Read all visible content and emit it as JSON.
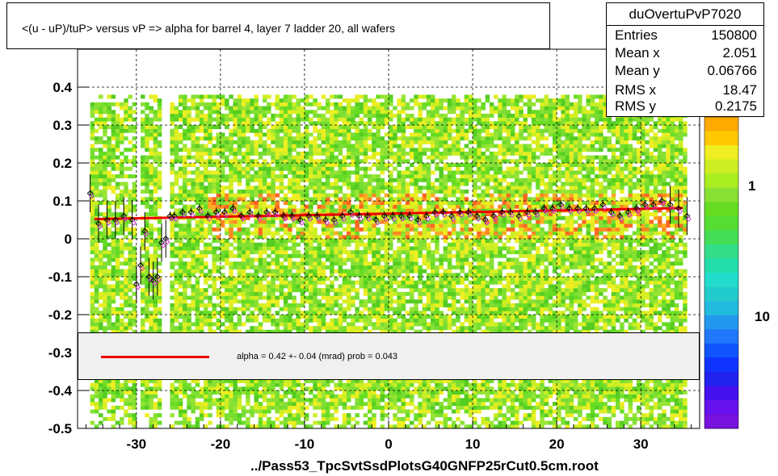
{
  "title": "<(u - uP)/tuP> versus   vP => alpha for barrel 4, layer 7 ladder 20, all wafers",
  "stats": {
    "name": "duOvertuPvP7020",
    "rows": [
      {
        "label": "Entries",
        "value": "150800"
      },
      {
        "label": "Mean x",
        "value": "2.051"
      },
      {
        "label": "Mean y",
        "value": "0.06766"
      },
      {
        "label": "RMS x",
        "value": "18.47"
      },
      {
        "label": "RMS y",
        "value": "0.2175"
      }
    ]
  },
  "fit_text": "alpha =    0.42 +-  0.04 (mrad) prob = 0.043",
  "file_label": "../Pass53_TpcSvtSsdPlotsG40GNFP25rCut0.5cm.root",
  "colors": {
    "fit_line": "#ee0000",
    "profile_black": "#000000",
    "profile_magenta": "#d040d0",
    "heat_green": "#66dd22",
    "heat_yellow": "#ddee22",
    "heat_orange": "#ff8822"
  },
  "chart_data": {
    "type": "heatmap",
    "xlim": [
      -37,
      37
    ],
    "ylim": [
      -0.5,
      0.5
    ],
    "x_ticks": [
      -30,
      -20,
      -10,
      0,
      10,
      20,
      30
    ],
    "y_ticks": [
      -0.5,
      -0.4,
      -0.3,
      -0.2,
      -0.1,
      0,
      0.1,
      0.2,
      0.3,
      0.4
    ],
    "x_tick_labels": [
      "-30",
      "-20",
      "-10",
      "0",
      "10",
      "20",
      "30"
    ],
    "y_tick_labels": [
      "-0.5",
      "-0.4",
      "-0.3",
      "-0.2",
      "-0.1",
      "0",
      "0.1",
      "0.2",
      "0.3",
      "0.4"
    ],
    "grid": true,
    "color_scale": {
      "type": "log",
      "labels": [
        "1",
        "10"
      ]
    },
    "fit_line": {
      "x": [
        -35,
        35
      ],
      "y": [
        0.052,
        0.081
      ]
    },
    "profile_series": {
      "name": "profile",
      "x": [
        -35.5,
        -34.5,
        -33.5,
        -32.5,
        -31.5,
        -30.5,
        -30,
        -29.5,
        -29,
        -28.5,
        -28,
        -27.5,
        -27,
        -26.5,
        -26,
        -25.5,
        -24.5,
        -23.5,
        -22.5,
        -21.5,
        -20.5,
        -19.5,
        -18.5,
        -17.5,
        -16.5,
        -15.5,
        -14.5,
        -13.5,
        -12.5,
        -11.5,
        -10.5,
        -9.5,
        -8.5,
        -7.5,
        -6.5,
        -5.5,
        -4.5,
        -3.5,
        -2.5,
        -1.5,
        -0.5,
        0.5,
        1.5,
        2.5,
        3.5,
        4.5,
        5.5,
        6.5,
        7.5,
        8.5,
        9.5,
        10.5,
        11.5,
        12.5,
        13.5,
        14.5,
        15.5,
        16.5,
        17.5,
        18.5,
        19.5,
        20.5,
        21.5,
        22.5,
        23.5,
        24.5,
        25.5,
        26.5,
        27.5,
        28.5,
        29.5,
        30.5,
        31.5,
        32.5,
        33.5,
        34.5,
        35.5
      ],
      "y": [
        0.12,
        0.04,
        0.05,
        0.05,
        0.06,
        0.05,
        -0.12,
        -0.07,
        0.02,
        -0.1,
        -0.11,
        -0.1,
        -0.01,
        0.0,
        0.06,
        0.06,
        0.07,
        0.07,
        0.08,
        0.06,
        0.07,
        0.07,
        0.08,
        0.06,
        0.07,
        0.06,
        0.07,
        0.07,
        0.06,
        0.06,
        0.05,
        0.06,
        0.06,
        0.05,
        0.05,
        0.06,
        0.07,
        0.06,
        0.06,
        0.05,
        0.06,
        0.06,
        0.06,
        0.06,
        0.05,
        0.06,
        0.07,
        0.07,
        0.06,
        0.07,
        0.07,
        0.06,
        0.05,
        0.06,
        0.07,
        0.07,
        0.06,
        0.07,
        0.07,
        0.08,
        0.08,
        0.09,
        0.08,
        0.08,
        0.08,
        0.08,
        0.09,
        0.07,
        0.06,
        0.07,
        0.08,
        0.09,
        0.09,
        0.1,
        0.09,
        0.08,
        0.06
      ]
    }
  }
}
